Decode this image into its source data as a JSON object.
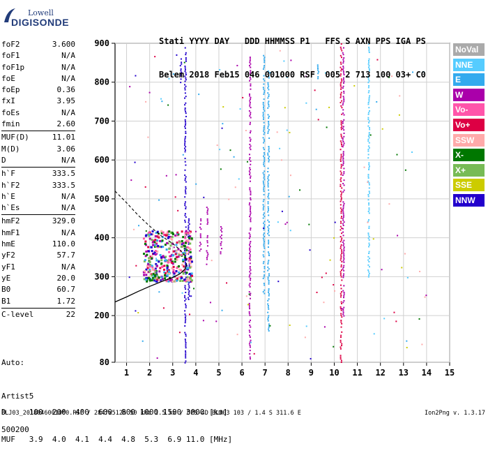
{
  "logo": {
    "line1": "Lowell",
    "line2": "DIGISONDE"
  },
  "header": {
    "line1": "Stati YYYY DAY   DDD HHMMSS P1   FFS S AXN PPS IGA PS",
    "line2": "Belem 2018 Feb15 046 001000 RSF  005 2 713 100 03+ C0"
  },
  "params_groups": [
    [
      [
        "foF2",
        "3.600"
      ],
      [
        "foF1",
        "N/A"
      ],
      [
        "foF1p",
        "N/A"
      ],
      [
        "foE",
        "N/A"
      ],
      [
        "foEp",
        "0.36"
      ],
      [
        "fxI",
        "3.95"
      ],
      [
        "foEs",
        "N/A"
      ],
      [
        "fmin",
        "2.60"
      ]
    ],
    [
      [
        "MUF(D)",
        "11.01"
      ],
      [
        "M(D)",
        "3.06"
      ],
      [
        "D",
        "N/A"
      ]
    ],
    [
      [
        "h`F",
        "333.5"
      ],
      [
        "h`F2",
        "333.5"
      ],
      [
        "h`E",
        "N/A"
      ],
      [
        "h`Es",
        "N/A"
      ]
    ],
    [
      [
        "hmF2",
        "329.0"
      ],
      [
        "hmF1",
        "N/A"
      ],
      [
        "hmE",
        "110.0"
      ],
      [
        "yF2",
        "57.7"
      ],
      [
        "yF1",
        "N/A"
      ],
      [
        "yE",
        "20.0"
      ],
      [
        "B0",
        "60.7"
      ],
      [
        "B1",
        "1.72"
      ]
    ],
    [
      [
        "C-level",
        "22"
      ]
    ]
  ],
  "auto": {
    "line1": "Auto:",
    "line2": "Artist5",
    "line3": "500200"
  },
  "legend": [
    {
      "label": "NoVal",
      "color": "#aaaaaa"
    },
    {
      "label": "NNE",
      "color": "#55ccff"
    },
    {
      "label": "E",
      "color": "#33aaee"
    },
    {
      "label": "W",
      "color": "#aa00aa"
    },
    {
      "label": "Vo-",
      "color": "#ff55aa"
    },
    {
      "label": "Vo+",
      "color": "#dd0044"
    },
    {
      "label": "SSW",
      "color": "#ffaaaa"
    },
    {
      "label": "X-",
      "color": "#007700"
    },
    {
      "label": "X+",
      "color": "#77bb55"
    },
    {
      "label": "SSE",
      "color": "#cccc00"
    },
    {
      "label": "NNW",
      "color": "#2200cc"
    }
  ],
  "dmuf": {
    "d_label": "D",
    "muf_label": "MUF",
    "unit_d": "[km]",
    "unit_muf": "[MHz]",
    "d": [
      "100",
      "200",
      "400",
      "600",
      "800",
      "1000",
      "1500",
      "3000"
    ],
    "muf": [
      "3.9",
      "4.0",
      "4.1",
      "4.4",
      "4.8",
      "5.3",
      "6.9",
      "11.0"
    ]
  },
  "footer": {
    "left": "BLJ03_2018046001000.RSF / 284fx512h 50 kHz 2.5 km / DPS-4D BLJ03 103 / 1.4 S 311.6 E",
    "right": "Ion2Png v. 1.3.17"
  },
  "chart_data": {
    "type": "scatter",
    "xlim": [
      0.5,
      15
    ],
    "ylim": [
      80,
      900
    ],
    "xticks": [
      1,
      2,
      3,
      4,
      5,
      6,
      7,
      8,
      9,
      10,
      11,
      12,
      13,
      14,
      15
    ],
    "yticks": [
      80,
      200,
      300,
      400,
      500,
      600,
      700,
      800,
      900
    ],
    "grid": true,
    "echo_traces": [
      {
        "name": "E",
        "color": "#33aaee",
        "f": 6.95,
        "h": [
          250,
          870
        ]
      },
      {
        "name": "E",
        "color": "#33aaee",
        "f": 7.15,
        "h": [
          160,
          830
        ]
      },
      {
        "name": "W",
        "color": "#aa00aa",
        "f": 6.35,
        "h": [
          90,
          870
        ]
      },
      {
        "name": "Vo+",
        "color": "#dd0044",
        "f": 10.3,
        "h": [
          80,
          900
        ]
      },
      {
        "name": "W",
        "color": "#aa00aa",
        "f": 10.4,
        "h": [
          190,
          890
        ]
      },
      {
        "name": "NNE",
        "color": "#55ccff",
        "f": 11.5,
        "h": [
          300,
          900
        ]
      },
      {
        "name": "NNW",
        "color": "#2200cc",
        "f": 3.55,
        "h": [
          80,
          890
        ]
      },
      {
        "name": "NNW",
        "color": "#2200cc",
        "f": 3.7,
        "h": [
          240,
          450
        ]
      },
      {
        "name": "W",
        "color": "#aa00aa",
        "f": 4.5,
        "h": [
          330,
          480
        ]
      },
      {
        "name": "W",
        "color": "#aa00aa",
        "f": 5.1,
        "h": [
          360,
          430
        ]
      },
      {
        "name": "W",
        "color": "#aa00aa",
        "f": 4.2,
        "h": [
          360,
          450
        ]
      },
      {
        "name": "NNW",
        "color": "#2200cc",
        "f": 3.35,
        "h": [
          800,
          870
        ]
      },
      {
        "name": "E",
        "color": "#33aaee",
        "f": 9.3,
        "h": [
          790,
          850
        ]
      }
    ],
    "cluster": {
      "f": [
        1.7,
        3.8
      ],
      "h": [
        290,
        420
      ]
    },
    "profile_solid": [
      [
        0.5,
        235
      ],
      [
        1.0,
        248
      ],
      [
        1.5,
        262
      ],
      [
        2.0,
        275
      ],
      [
        2.5,
        287
      ],
      [
        3.0,
        298
      ],
      [
        3.3,
        307
      ],
      [
        3.55,
        320
      ],
      [
        3.6,
        335
      ]
    ],
    "profile_dashed": [
      [
        0.5,
        520
      ],
      [
        1.0,
        490
      ],
      [
        1.5,
        458
      ],
      [
        2.0,
        430
      ],
      [
        2.5,
        405
      ],
      [
        3.0,
        385
      ],
      [
        3.3,
        370
      ],
      [
        3.55,
        352
      ],
      [
        3.6,
        340
      ]
    ]
  }
}
